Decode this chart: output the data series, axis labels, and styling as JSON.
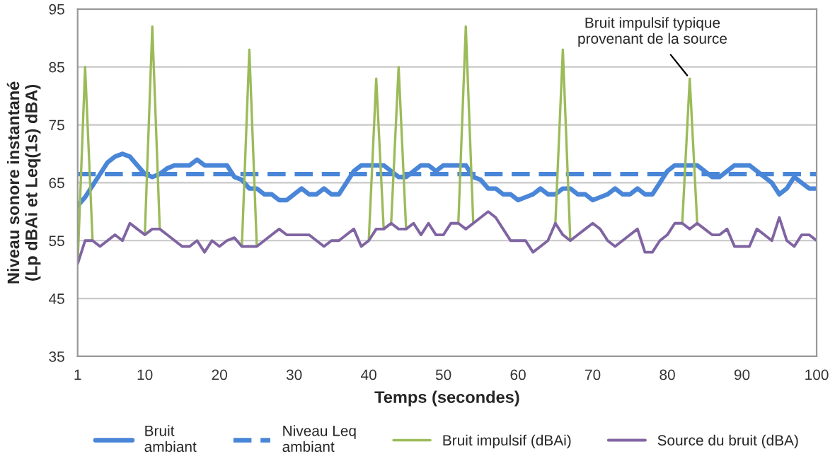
{
  "chart_data": {
    "type": "line",
    "xlabel": "Temps (secondes)",
    "ylabel": "Niveau sonore instantané\n(Lp dBAi et Leq(1s) dBA)",
    "x": [
      1,
      2,
      3,
      4,
      5,
      6,
      7,
      8,
      9,
      10,
      11,
      12,
      13,
      14,
      15,
      16,
      17,
      18,
      19,
      20,
      21,
      22,
      23,
      24,
      25,
      26,
      27,
      28,
      29,
      30,
      31,
      32,
      33,
      34,
      35,
      36,
      37,
      38,
      39,
      40,
      41,
      42,
      43,
      44,
      45,
      46,
      47,
      48,
      49,
      50,
      51,
      52,
      53,
      54,
      55,
      56,
      57,
      58,
      59,
      60,
      61,
      62,
      63,
      64,
      65,
      66,
      67,
      68,
      69,
      70,
      71,
      72,
      73,
      74,
      75,
      76,
      77,
      78,
      79,
      80,
      81,
      82,
      83,
      84,
      85,
      86,
      87,
      88,
      89,
      90,
      91,
      92,
      93,
      94,
      95,
      96,
      97,
      98,
      99,
      100
    ],
    "xlim": [
      1,
      100
    ],
    "xticks": [
      1,
      10,
      20,
      30,
      40,
      50,
      60,
      70,
      80,
      90,
      100
    ],
    "ylim": [
      35,
      95
    ],
    "yticks": [
      35,
      45,
      55,
      65,
      75,
      85,
      95
    ],
    "grid": "y",
    "legend": "bottom",
    "annotations": [
      {
        "text": "Bruit impulsif typique\nprovenant de la source",
        "x": 83,
        "y": 83
      }
    ],
    "series": [
      {
        "name": "Bruit\nambiant",
        "color": "#4a86d8",
        "line_style": "solid",
        "values": [
          61,
          62.5,
          64.5,
          66.5,
          68.5,
          69.5,
          70,
          69.5,
          68,
          66.5,
          66,
          66.5,
          67.5,
          68,
          68,
          68,
          69,
          68,
          68,
          68,
          68,
          66,
          65.5,
          64,
          64,
          63,
          63,
          62,
          62,
          63,
          64,
          63,
          63,
          64,
          63,
          63,
          65,
          67,
          68,
          68,
          68,
          68,
          67,
          66,
          66,
          67,
          68,
          68,
          67,
          68,
          68,
          68,
          68,
          66,
          65.5,
          64,
          64,
          63,
          63,
          62,
          62.5,
          63,
          64,
          63,
          63,
          64,
          64,
          63,
          63,
          62,
          62.5,
          63,
          64,
          63,
          63,
          64,
          63,
          63,
          65,
          67,
          68,
          68,
          68,
          68,
          67,
          66,
          66,
          67,
          68,
          68,
          68,
          67,
          66,
          65,
          63,
          64,
          66,
          65,
          64,
          64
        ]
      },
      {
        "name": "Niveau Leq\nambiant",
        "color": "#4a86d8",
        "line_style": "dashed",
        "values": [
          66.5,
          66.5,
          66.5,
          66.5,
          66.5,
          66.5,
          66.5,
          66.5,
          66.5,
          66.5,
          66.5,
          66.5,
          66.5,
          66.5,
          66.5,
          66.5,
          66.5,
          66.5,
          66.5,
          66.5,
          66.5,
          66.5,
          66.5,
          66.5,
          66.5,
          66.5,
          66.5,
          66.5,
          66.5,
          66.5,
          66.5,
          66.5,
          66.5,
          66.5,
          66.5,
          66.5,
          66.5,
          66.5,
          66.5,
          66.5,
          66.5,
          66.5,
          66.5,
          66.5,
          66.5,
          66.5,
          66.5,
          66.5,
          66.5,
          66.5,
          66.5,
          66.5,
          66.5,
          66.5,
          66.5,
          66.5,
          66.5,
          66.5,
          66.5,
          66.5,
          66.5,
          66.5,
          66.5,
          66.5,
          66.5,
          66.5,
          66.5,
          66.5,
          66.5,
          66.5,
          66.5,
          66.5,
          66.5,
          66.5,
          66.5,
          66.5,
          66.5,
          66.5,
          66.5,
          66.5,
          66.5,
          66.5,
          66.5,
          66.5,
          66.5,
          66.5,
          66.5,
          66.5,
          66.5,
          66.5,
          66.5,
          66.5,
          66.5,
          66.5,
          66.5,
          66.5,
          66.5,
          66.5,
          66.5,
          66.5
        ]
      },
      {
        "name": "Bruit impulsif (dBAi)",
        "color": "#9bbb59",
        "line_style": "solid",
        "values": [
          51,
          85,
          55,
          null,
          null,
          null,
          null,
          null,
          null,
          56,
          92,
          57,
          null,
          null,
          null,
          null,
          null,
          null,
          null,
          null,
          null,
          null,
          54,
          88,
          54,
          null,
          null,
          null,
          null,
          null,
          null,
          null,
          null,
          null,
          null,
          null,
          null,
          null,
          null,
          55,
          83,
          57,
          58,
          85,
          57,
          null,
          null,
          null,
          null,
          null,
          null,
          58,
          92,
          58,
          null,
          null,
          null,
          null,
          null,
          null,
          null,
          null,
          null,
          null,
          58,
          88,
          55,
          null,
          null,
          null,
          null,
          null,
          null,
          null,
          null,
          null,
          null,
          null,
          null,
          null,
          null,
          58,
          83,
          58,
          null,
          null,
          null,
          null,
          null,
          null,
          null,
          null,
          null,
          null,
          null,
          null,
          null,
          null,
          null,
          null
        ]
      },
      {
        "name": "Source du bruit (dBA)",
        "color": "#8064a2",
        "line_style": "solid",
        "values": [
          51,
          55,
          55,
          54,
          55,
          56,
          55,
          58,
          57,
          56,
          57,
          57,
          56,
          55,
          54,
          54,
          55,
          53,
          55,
          54,
          55,
          55.5,
          54,
          54,
          54,
          55,
          56,
          57,
          56,
          56,
          56,
          56,
          55,
          54,
          55,
          55,
          56,
          57,
          54,
          55,
          57,
          57,
          58,
          57,
          57,
          58,
          56,
          58,
          56,
          56,
          58,
          58,
          57,
          58,
          59,
          60,
          59,
          57,
          55,
          55,
          55,
          53,
          54,
          55,
          58,
          56,
          55,
          56,
          57,
          58,
          57,
          55,
          54,
          55,
          56,
          57,
          53,
          53,
          55,
          56,
          58,
          58,
          57,
          58,
          57,
          56,
          56,
          57,
          54,
          54,
          54,
          57,
          56,
          55,
          59,
          55,
          54,
          56,
          56,
          55
        ]
      }
    ]
  }
}
